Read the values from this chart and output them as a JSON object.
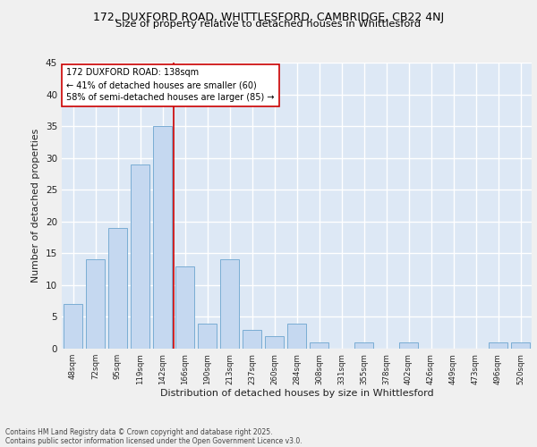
{
  "title1": "172, DUXFORD ROAD, WHITTLESFORD, CAMBRIDGE, CB22 4NJ",
  "title2": "Size of property relative to detached houses in Whittlesford",
  "xlabel": "Distribution of detached houses by size in Whittlesford",
  "ylabel": "Number of detached properties",
  "bar_labels": [
    "48sqm",
    "72sqm",
    "95sqm",
    "119sqm",
    "142sqm",
    "166sqm",
    "190sqm",
    "213sqm",
    "237sqm",
    "260sqm",
    "284sqm",
    "308sqm",
    "331sqm",
    "355sqm",
    "378sqm",
    "402sqm",
    "426sqm",
    "449sqm",
    "473sqm",
    "496sqm",
    "520sqm"
  ],
  "bar_values": [
    7,
    14,
    19,
    29,
    35,
    13,
    4,
    14,
    3,
    2,
    4,
    1,
    0,
    1,
    0,
    1,
    0,
    0,
    0,
    1,
    1
  ],
  "bar_color": "#c5d8f0",
  "bar_edge_color": "#7aadd4",
  "background_color": "#dde8f5",
  "grid_color": "#ffffff",
  "vline_x": 4.5,
  "vline_color": "#cc0000",
  "annotation_text": "172 DUXFORD ROAD: 138sqm\n← 41% of detached houses are smaller (60)\n58% of semi-detached houses are larger (85) →",
  "annotation_box_color": "#ffffff",
  "annotation_box_edge": "#cc0000",
  "footer1": "Contains HM Land Registry data © Crown copyright and database right 2025.",
  "footer2": "Contains public sector information licensed under the Open Government Licence v3.0.",
  "fig_bg": "#f0f0f0",
  "ylim": [
    0,
    45
  ],
  "yticks": [
    0,
    5,
    10,
    15,
    20,
    25,
    30,
    35,
    40,
    45
  ]
}
